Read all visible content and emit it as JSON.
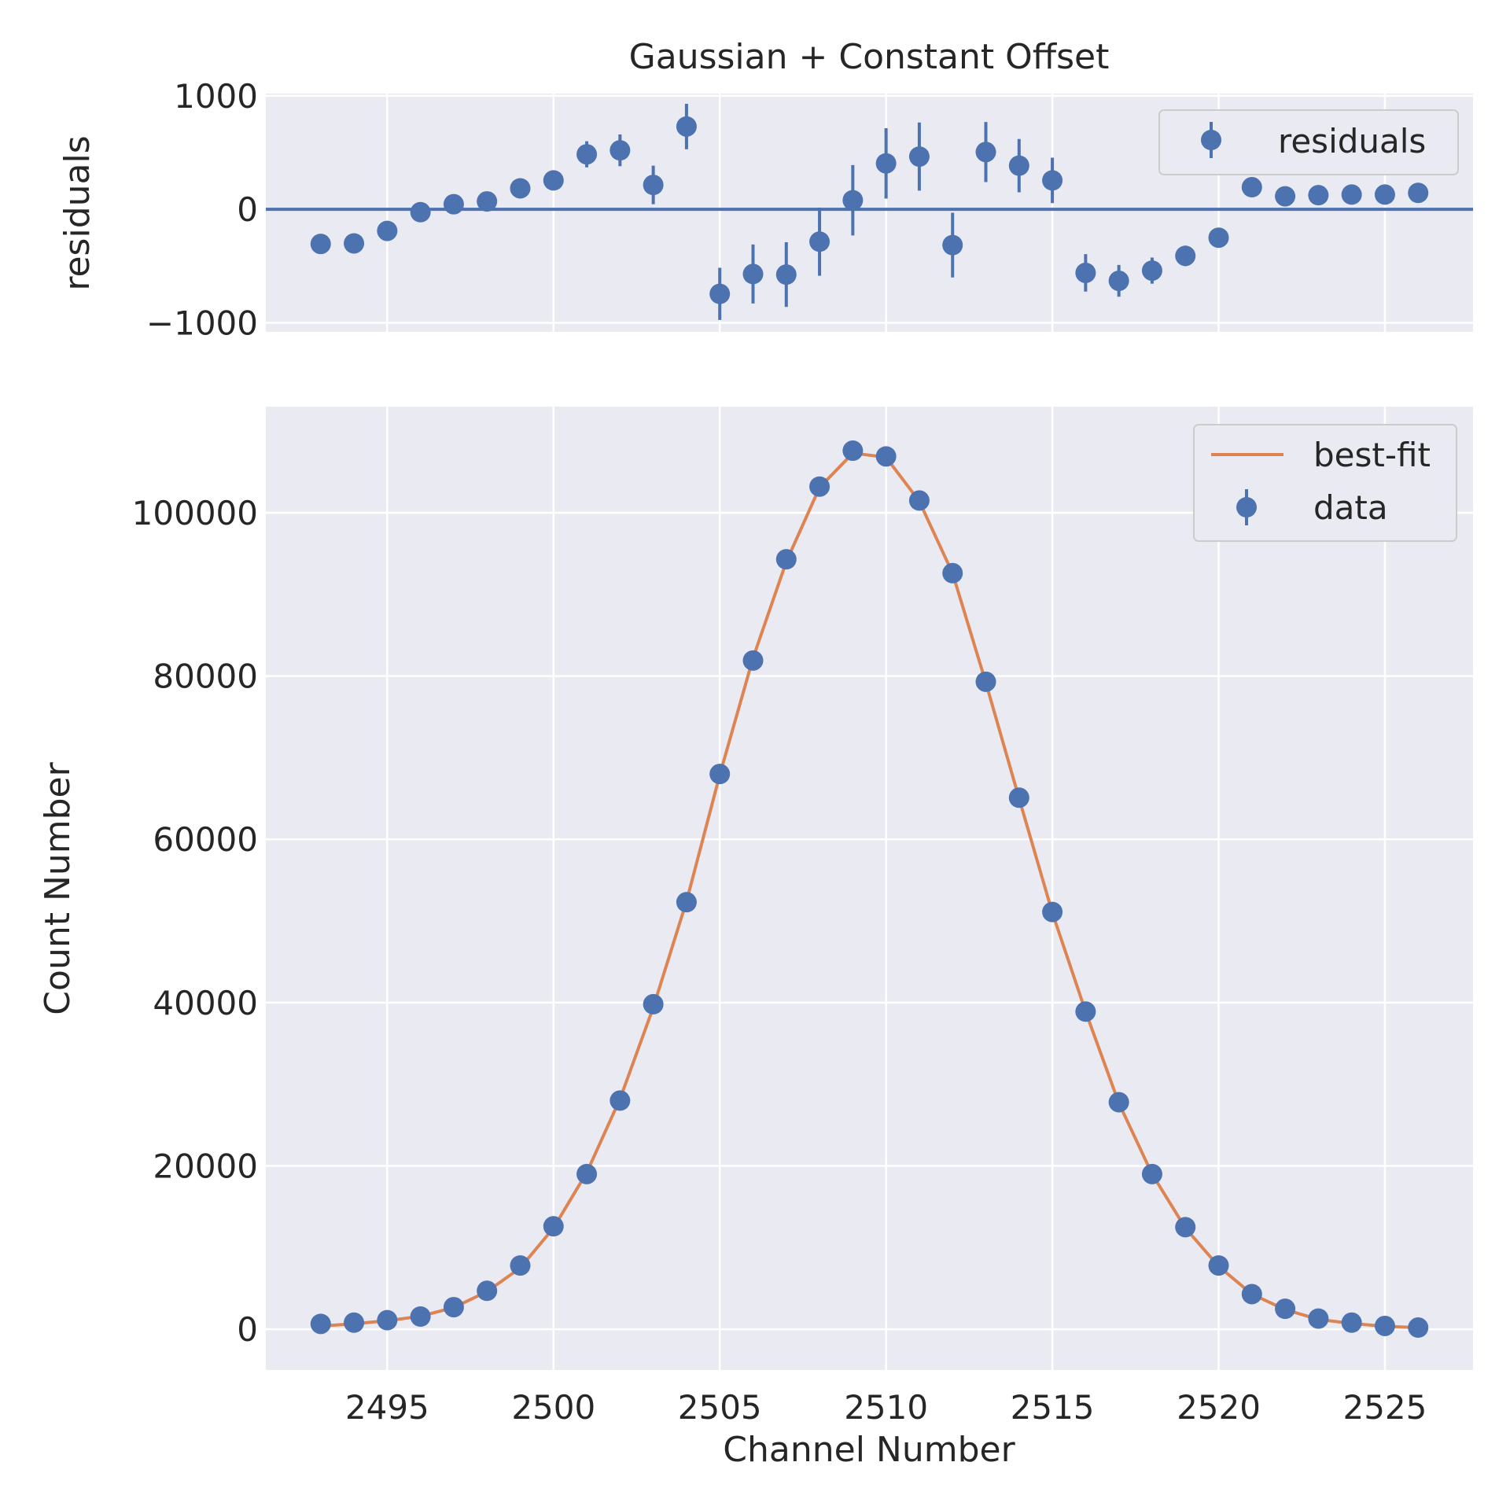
{
  "chart_data": [
    {
      "type": "scatter",
      "title": "Gaussian + Constant Offset",
      "xlabel": "",
      "ylabel": "residuals",
      "xlim": [
        2491.35,
        2527.65
      ],
      "ylim": [
        -1080,
        1020
      ],
      "y_ticks": [
        -1000,
        0,
        1000
      ],
      "y_tick_labels": [
        "−1000",
        "0",
        "1000"
      ],
      "x_ticks": [
        2495,
        2500,
        2505,
        2510,
        2515,
        2520,
        2525
      ],
      "grid": true,
      "legend_position": "top-right",
      "zero_line": 0,
      "series": [
        {
          "name": "residuals",
          "color": "#4c72b0",
          "x": [
            2493,
            2494,
            2495,
            2496,
            2497,
            2498,
            2499,
            2500,
            2501,
            2502,
            2503,
            2504,
            2505,
            2506,
            2507,
            2508,
            2509,
            2510,
            2511,
            2512,
            2513,
            2514,
            2515,
            2516,
            2517,
            2518,
            2519,
            2520,
            2521,
            2522,
            2523,
            2524,
            2525,
            2526
          ],
          "y": [
            -305,
            -300,
            -190,
            -25,
            45,
            70,
            185,
            255,
            485,
            520,
            215,
            730,
            -745,
            -570,
            -575,
            -285,
            80,
            405,
            465,
            -315,
            505,
            385,
            255,
            -560,
            -630,
            -540,
            -410,
            -250,
            195,
            115,
            125,
            130,
            130,
            145
          ],
          "yerr": [
            20,
            20,
            25,
            30,
            40,
            50,
            65,
            80,
            115,
            140,
            170,
            200,
            230,
            260,
            285,
            300,
            310,
            310,
            300,
            285,
            265,
            235,
            200,
            165,
            140,
            115,
            90,
            70,
            50,
            35,
            25,
            20,
            15,
            12
          ]
        }
      ]
    },
    {
      "type": "scatter",
      "title": "",
      "xlabel": "Channel Number",
      "ylabel": "Count Number",
      "xlim": [
        2491.35,
        2527.65
      ],
      "ylim": [
        -5000,
        113000
      ],
      "x_ticks": [
        2495,
        2500,
        2505,
        2510,
        2515,
        2520,
        2525
      ],
      "y_ticks": [
        0,
        20000,
        40000,
        60000,
        80000,
        100000
      ],
      "grid": true,
      "legend_position": "top-right",
      "series": [
        {
          "name": "best-fit",
          "kind": "line",
          "color": "#dd8452",
          "x": [
            2493,
            2494,
            2495,
            2496,
            2497,
            2498,
            2499,
            2500,
            2501,
            2502,
            2503,
            2504,
            2505,
            2506,
            2507,
            2508,
            2509,
            2510,
            2511,
            2512,
            2513,
            2514,
            2515,
            2516,
            2517,
            2518,
            2519,
            2520,
            2521,
            2522,
            2523,
            2524,
            2525,
            2526
          ],
          "y": [
            380,
            650,
            1040,
            1580,
            2650,
            4600,
            7500,
            12400,
            19200,
            28200,
            39400,
            52400,
            67900,
            82200,
            94000,
            103100,
            107300,
            106800,
            101400,
            92600,
            79200,
            65000,
            51000,
            38900,
            27700,
            19000,
            12400,
            7700,
            4300,
            2400,
            1200,
            700,
            350,
            190
          ]
        },
        {
          "name": "data",
          "kind": "points",
          "color": "#4c72b0",
          "x": [
            2493,
            2494,
            2495,
            2496,
            2497,
            2498,
            2499,
            2500,
            2501,
            2502,
            2503,
            2504,
            2505,
            2506,
            2507,
            2508,
            2509,
            2510,
            2511,
            2512,
            2513,
            2514,
            2515,
            2516,
            2517,
            2518,
            2519,
            2520,
            2521,
            2522,
            2523,
            2524,
            2525,
            2526
          ],
          "y": [
            650,
            800,
            1100,
            1550,
            2700,
            4700,
            7800,
            12600,
            19000,
            28000,
            39800,
            52300,
            68000,
            81900,
            94300,
            103200,
            107600,
            106900,
            101500,
            92600,
            79300,
            65100,
            51100,
            38900,
            27800,
            19000,
            12500,
            7800,
            4300,
            2500,
            1300,
            800,
            400,
            200
          ]
        }
      ]
    }
  ]
}
